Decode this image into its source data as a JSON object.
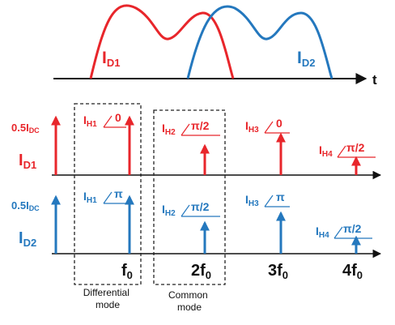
{
  "time_plot": {
    "axis_label": "t",
    "waveform_1": {
      "label_main": "I",
      "label_sub": "D1",
      "color": "#e8262b"
    },
    "waveform_2": {
      "label_main": "I",
      "label_sub": "D2",
      "color": "#2478be"
    }
  },
  "spectrum": {
    "red_row": {
      "amplitude_label": "0.5I",
      "amplitude_sub": "DC",
      "row_label": "I",
      "row_sub": "D1",
      "color": "#e8262b",
      "harmonics": [
        {
          "name": "I",
          "sub": "H1",
          "phase": "0"
        },
        {
          "name": "I",
          "sub": "H2",
          "phase": "π/2"
        },
        {
          "name": "I",
          "sub": "H3",
          "phase": "0"
        },
        {
          "name": "I",
          "sub": "H4",
          "phase": "π/2"
        }
      ]
    },
    "blue_row": {
      "amplitude_label": "0.5I",
      "amplitude_sub": "DC",
      "row_label": "I",
      "row_sub": "D2",
      "color": "#2478be",
      "harmonics": [
        {
          "name": "I",
          "sub": "H1",
          "phase": "π"
        },
        {
          "name": "I",
          "sub": "H2",
          "phase": "π/2"
        },
        {
          "name": "I",
          "sub": "H3",
          "phase": "π"
        },
        {
          "name": "I",
          "sub": "H4",
          "phase": "π/2"
        }
      ]
    },
    "frequency_labels": [
      {
        "coef": "",
        "f": "f",
        "sub": "0"
      },
      {
        "coef": "2",
        "f": "f",
        "sub": "0"
      },
      {
        "coef": "3",
        "f": "f",
        "sub": "0"
      },
      {
        "coef": "4",
        "f": "f",
        "sub": "0"
      }
    ],
    "boxes": {
      "differential": {
        "line1": "Differential",
        "line2": "mode"
      },
      "common": {
        "line1": "Common",
        "line2": "mode"
      }
    }
  }
}
